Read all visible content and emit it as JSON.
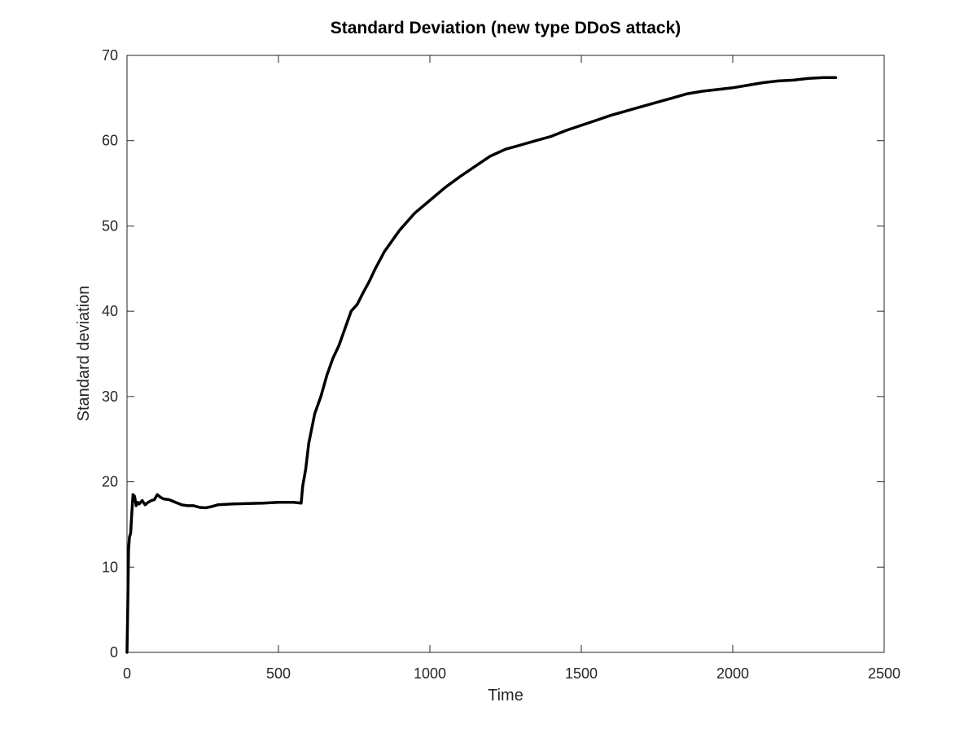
{
  "chart_data": {
    "type": "line",
    "title": "Standard Deviation (new type DDoS attack)",
    "xlabel": "Time",
    "ylabel": "Standard deviation",
    "xlim": [
      0,
      2500
    ],
    "ylim": [
      0,
      70
    ],
    "xticks": [
      0,
      500,
      1000,
      1500,
      2000,
      2500
    ],
    "yticks": [
      0,
      10,
      20,
      30,
      40,
      50,
      60,
      70
    ],
    "grid": false,
    "legend": "none",
    "line_color": "#000000",
    "series": [
      {
        "x": [
          0,
          2,
          5,
          8,
          12,
          16,
          20,
          25,
          30,
          35,
          40,
          50,
          60,
          70,
          80,
          90,
          100,
          110,
          120,
          140,
          160,
          180,
          200,
          220,
          240,
          260,
          280,
          300,
          350,
          400,
          450,
          500,
          550,
          575,
          580,
          590,
          600,
          620,
          640,
          660,
          680,
          700,
          720,
          740,
          760,
          780,
          800,
          820,
          850,
          900,
          950,
          1000,
          1050,
          1100,
          1150,
          1200,
          1250,
          1300,
          1350,
          1400,
          1450,
          1500,
          1550,
          1600,
          1650,
          1700,
          1750,
          1800,
          1850,
          1900,
          1950,
          2000,
          2050,
          2100,
          2150,
          2200,
          2250,
          2300,
          2340
        ],
        "values": [
          0,
          4,
          12,
          13.5,
          14,
          16.5,
          18.5,
          18.3,
          17.2,
          17.6,
          17.4,
          17.8,
          17.3,
          17.6,
          17.8,
          17.9,
          18.5,
          18.2,
          18.0,
          17.9,
          17.6,
          17.3,
          17.2,
          17.2,
          17.0,
          16.95,
          17.1,
          17.3,
          17.4,
          17.45,
          17.5,
          17.6,
          17.6,
          17.5,
          19.5,
          21.5,
          24.5,
          28.0,
          30.0,
          32.5,
          34.5,
          36.0,
          38.0,
          40.0,
          40.8,
          42.2,
          43.5,
          45.0,
          47.0,
          49.5,
          51.5,
          53.0,
          54.5,
          55.8,
          57.0,
          58.2,
          59.0,
          59.5,
          60.0,
          60.5,
          61.2,
          61.8,
          62.4,
          63.0,
          63.5,
          64.0,
          64.5,
          65.0,
          65.5,
          65.8,
          66.0,
          66.2,
          66.5,
          66.8,
          67.0,
          67.1,
          67.3,
          67.4,
          67.4
        ]
      }
    ]
  }
}
